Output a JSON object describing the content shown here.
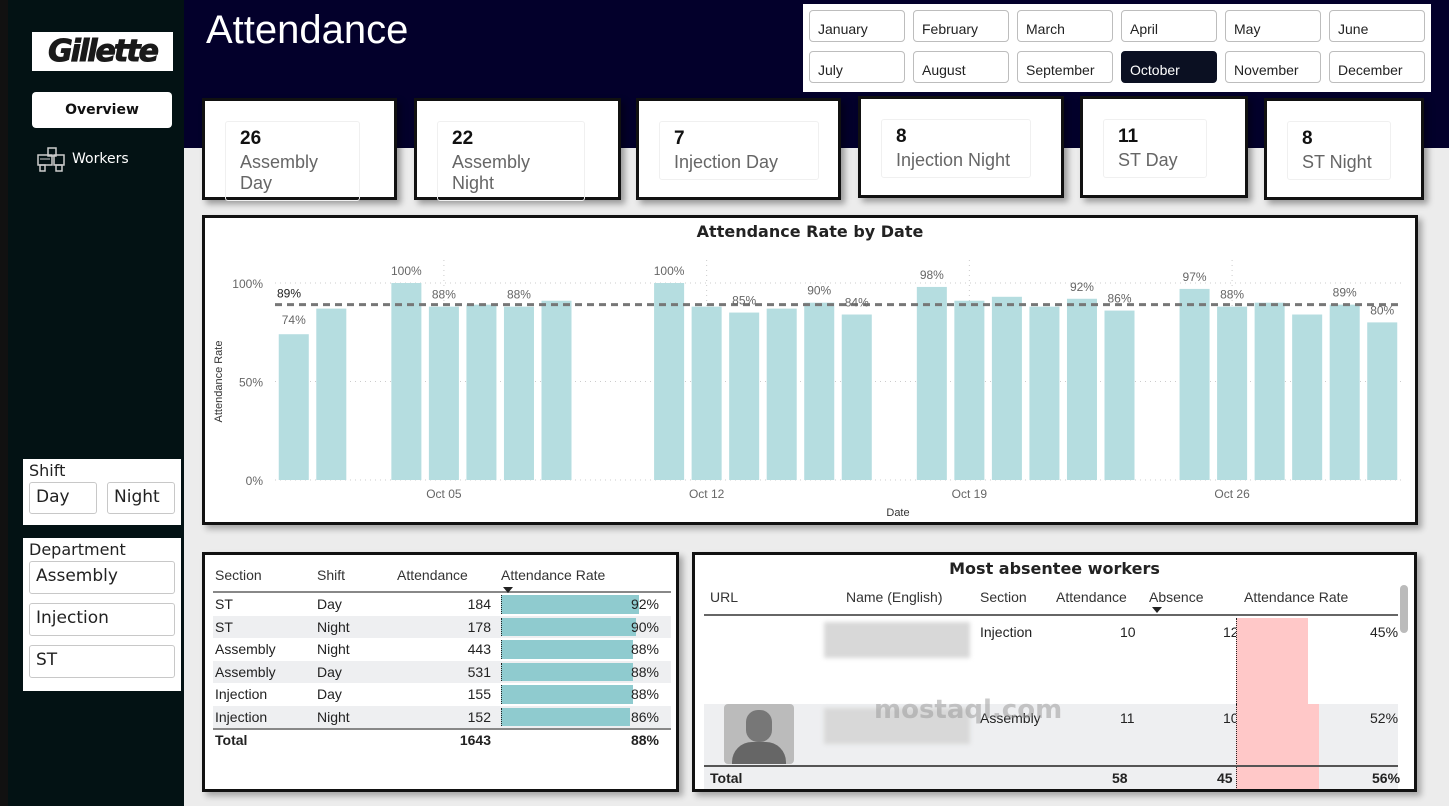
{
  "sidebar": {
    "logo_text": "Gillette",
    "nav": [
      {
        "label": "Overview",
        "icon": "none",
        "active": true
      },
      {
        "label": "Workers",
        "icon": "workers-icon",
        "active": false
      }
    ],
    "shift_slicer": {
      "title": "Shift",
      "options": [
        "Day",
        "Night"
      ]
    },
    "department_slicer": {
      "title": "Department",
      "options": [
        "Assembly",
        "Injection",
        "ST"
      ]
    }
  },
  "header": {
    "title": "Attendance",
    "months": [
      "January",
      "February",
      "March",
      "April",
      "May",
      "June",
      "July",
      "August",
      "September",
      "October",
      "November",
      "December"
    ],
    "selected_month": "October"
  },
  "kpis": [
    {
      "value": "26",
      "label": "Assembly Day"
    },
    {
      "value": "22",
      "label": "Assembly Night"
    },
    {
      "value": "7",
      "label": "Injection Day"
    },
    {
      "value": "8",
      "label": "Injection Night"
    },
    {
      "value": "11",
      "label": "ST Day"
    },
    {
      "value": "8",
      "label": "ST Night"
    }
  ],
  "chart_data": {
    "type": "bar",
    "title": "Attendance Rate by Date",
    "xlabel": "Date",
    "ylabel": "Attendance Rate",
    "ylim": [
      0,
      100
    ],
    "yticks": [
      "0%",
      "50%",
      "100%"
    ],
    "xtick_labels": [
      {
        "label": "Oct 05",
        "day": 5
      },
      {
        "label": "Oct 12",
        "day": 12
      },
      {
        "label": "Oct 19",
        "day": 19
      },
      {
        "label": "Oct 26",
        "day": 26
      }
    ],
    "grid": true,
    "bar_color": "#b5dde0",
    "average_line": {
      "value": 89,
      "label": "89%"
    },
    "points": [
      {
        "day": 1,
        "value": 74,
        "label": "74%"
      },
      {
        "day": 2,
        "value": 87,
        "label": ""
      },
      {
        "day": 4,
        "value": 100,
        "label": "100%"
      },
      {
        "day": 5,
        "value": 88,
        "label": "88%"
      },
      {
        "day": 6,
        "value": 89,
        "label": ""
      },
      {
        "day": 7,
        "value": 88,
        "label": "88%"
      },
      {
        "day": 8,
        "value": 91,
        "label": ""
      },
      {
        "day": 11,
        "value": 100,
        "label": "100%"
      },
      {
        "day": 12,
        "value": 88,
        "label": ""
      },
      {
        "day": 13,
        "value": 85,
        "label": "85%"
      },
      {
        "day": 14,
        "value": 87,
        "label": ""
      },
      {
        "day": 15,
        "value": 90,
        "label": "90%"
      },
      {
        "day": 16,
        "value": 84,
        "label": "84%"
      },
      {
        "day": 18,
        "value": 98,
        "label": "98%"
      },
      {
        "day": 19,
        "value": 91,
        "label": ""
      },
      {
        "day": 20,
        "value": 93,
        "label": ""
      },
      {
        "day": 21,
        "value": 88,
        "label": ""
      },
      {
        "day": 22,
        "value": 92,
        "label": "92%"
      },
      {
        "day": 23,
        "value": 86,
        "label": "86%"
      },
      {
        "day": 25,
        "value": 97,
        "label": "97%"
      },
      {
        "day": 26,
        "value": 88,
        "label": "88%"
      },
      {
        "day": 27,
        "value": 90,
        "label": ""
      },
      {
        "day": 28,
        "value": 84,
        "label": ""
      },
      {
        "day": 29,
        "value": 89,
        "label": "89%"
      },
      {
        "day": 30,
        "value": 80,
        "label": "80%"
      }
    ]
  },
  "section_table": {
    "columns": [
      "Section",
      "Shift",
      "Attendance",
      "Attendance Rate"
    ],
    "sorted_column": "Attendance Rate",
    "bar_color": "#8fcbcf",
    "rows": [
      {
        "section": "ST",
        "shift": "Day",
        "attendance": "184",
        "rate": "92%",
        "rate_value": 92
      },
      {
        "section": "ST",
        "shift": "Night",
        "attendance": "178",
        "rate": "90%",
        "rate_value": 90
      },
      {
        "section": "Assembly",
        "shift": "Night",
        "attendance": "443",
        "rate": "88%",
        "rate_value": 88
      },
      {
        "section": "Assembly",
        "shift": "Day",
        "attendance": "531",
        "rate": "88%",
        "rate_value": 88
      },
      {
        "section": "Injection",
        "shift": "Day",
        "attendance": "155",
        "rate": "88%",
        "rate_value": 88
      },
      {
        "section": "Injection",
        "shift": "Night",
        "attendance": "152",
        "rate": "86%",
        "rate_value": 86
      }
    ],
    "total": {
      "label": "Total",
      "attendance": "1643",
      "rate": "88%"
    }
  },
  "absentee_table": {
    "title": "Most absentee workers",
    "columns": [
      "URL",
      "Name (English)",
      "Section",
      "Attendance",
      "Absence",
      "Attendance Rate"
    ],
    "sorted_column": "Absence",
    "bar_color": "#ffc8c8",
    "rows": [
      {
        "has_photo": false,
        "name": "(blurred)",
        "section": "Injection",
        "attendance": "10",
        "absence": "12",
        "rate": "45%",
        "rate_value": 45
      },
      {
        "has_photo": true,
        "name": "(blurred)",
        "section": "Assembly",
        "attendance": "11",
        "absence": "10",
        "rate": "52%",
        "rate_value": 52
      }
    ],
    "total": {
      "label": "Total",
      "attendance": "58",
      "absence": "45",
      "rate": "56%"
    }
  },
  "watermark": "mostaql.com"
}
